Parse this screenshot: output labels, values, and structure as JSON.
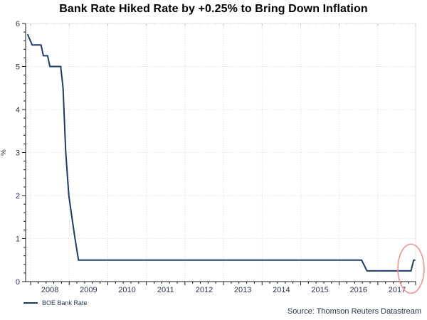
{
  "title": "Bank Rate Hiked Rate by +0.25% to Bring Down Inflation",
  "source_note": "Source: Thomson Reuters Datastream",
  "legend": {
    "label": "BOE Bank Rate"
  },
  "colors": {
    "line": "#1f3b67",
    "grid": "#d9d9d9",
    "axis": "#1a1a1a",
    "light_border": "#e0e0e0",
    "top_tick": "#c9c9c9",
    "tick_label": "#2b3551",
    "annotation": "#f08f8f",
    "background": "#ffffff"
  },
  "chart_data": {
    "type": "line",
    "title": "Bank Rate Hiked Rate by +0.25% to Bring Down Inflation",
    "xlabel": "",
    "ylabel": "%",
    "x_range": [
      2007.87,
      2017.98
    ],
    "y_range": [
      0,
      6
    ],
    "x_tick_years": [
      2008,
      2009,
      2010,
      2011,
      2012,
      2013,
      2014,
      2015,
      2016,
      2017
    ],
    "y_ticks": [
      0,
      1,
      2,
      3,
      4,
      5,
      6
    ],
    "x_minor_step": 0.2,
    "y_minor_step": 0.2,
    "grid": "major-dotted",
    "legend_position": "bottom-left",
    "series": [
      {
        "name": "BOE Bank Rate",
        "color": "#1f3b67",
        "points": [
          [
            2007.92,
            5.75
          ],
          [
            2008.04,
            5.5
          ],
          [
            2008.27,
            5.5
          ],
          [
            2008.33,
            5.25
          ],
          [
            2008.44,
            5.25
          ],
          [
            2008.5,
            5.0
          ],
          [
            2008.78,
            5.0
          ],
          [
            2008.84,
            4.5
          ],
          [
            2008.91,
            3.0
          ],
          [
            2008.99,
            2.0
          ],
          [
            2009.07,
            1.5
          ],
          [
            2009.15,
            1.0
          ],
          [
            2009.24,
            0.5
          ],
          [
            2016.58,
            0.5
          ],
          [
            2016.72,
            0.25
          ],
          [
            2017.86,
            0.25
          ],
          [
            2017.93,
            0.5
          ],
          [
            2017.97,
            0.5
          ]
        ]
      }
    ],
    "annotation": {
      "shape": "ellipse",
      "center_year": 2017.86,
      "center_value": 0.3,
      "radius_years": 0.34,
      "radius_value": 0.57,
      "color": "#f08f8f"
    }
  }
}
